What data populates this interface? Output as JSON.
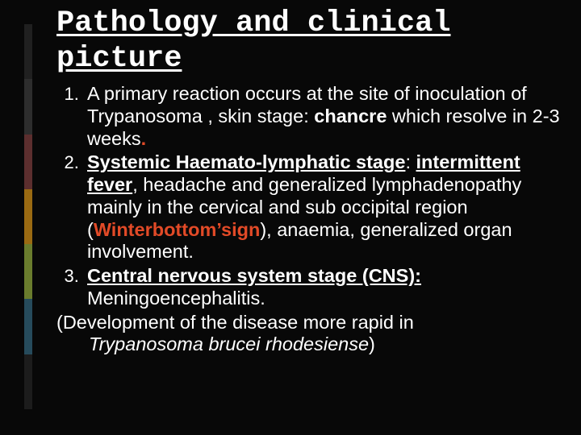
{
  "title": "Pathology and clinical picture",
  "item1": {
    "pre": "A primary reaction occurs at the site of inoculation of  Trypanosoma , skin  stage: ",
    "key": "chancre",
    "post": " which resolve in 2-3 weeks",
    "period": "."
  },
  "item2": {
    "line1_bu": "Systemic Haemato-lymphatic stage",
    "line1_colon": ": ",
    "fever": "intermittent fever",
    "mid1": ", headache and generalized lymphadenopathy mainly in the cervical and sub occipital region (",
    "sign": "Winterbottom’sign",
    "mid2": "), anaemia, generalized organ involvement."
  },
  "item3": {
    "heading": "Central nervous system stage (CNS):",
    "rest": " Meningoencephalitis."
  },
  "tail": {
    "line1": "(Development of the disease more rapid in ",
    "species": "Trypanosoma brucei rhodesiense",
    "close": ")"
  }
}
